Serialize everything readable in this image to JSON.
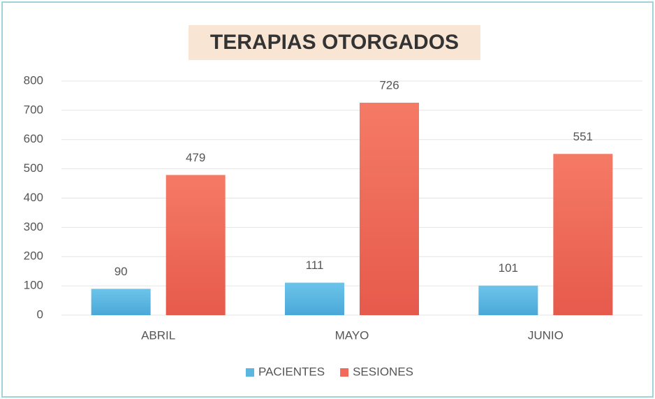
{
  "chart_data": {
    "type": "bar",
    "title": "TERAPIAS OTORGADOS",
    "categories": [
      "ABRIL",
      "MAYO",
      "JUNIO"
    ],
    "series": [
      {
        "name": "PACIENTES",
        "color": "#5bb6e0",
        "values": [
          90,
          111,
          101
        ]
      },
      {
        "name": "SESIONES",
        "color": "#f0695a",
        "values": [
          479,
          726,
          551
        ]
      }
    ],
    "ylim": [
      0,
      800
    ],
    "yticks": [
      0,
      100,
      200,
      300,
      400,
      500,
      600,
      700,
      800
    ],
    "grid": true,
    "legend": "bottom"
  }
}
